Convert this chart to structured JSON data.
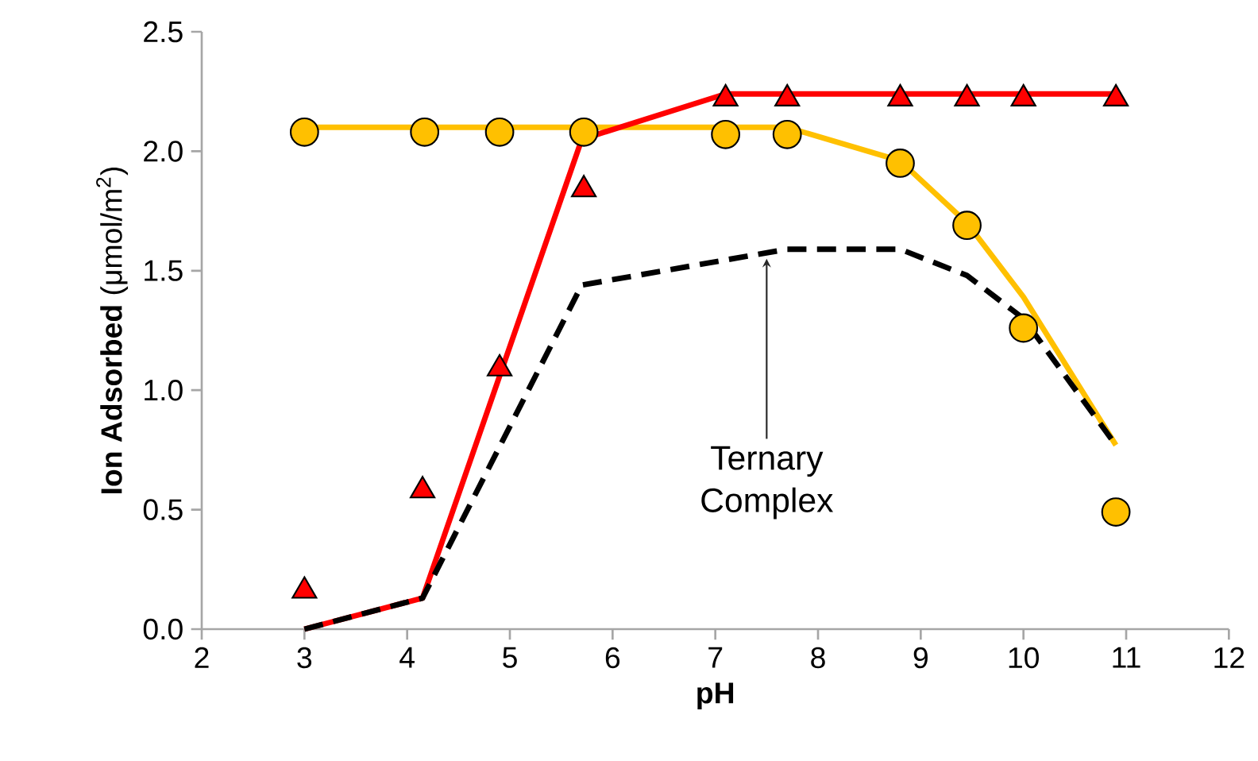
{
  "chart_data": {
    "type": "line",
    "xlabel": "pH",
    "ylabel": "**Ion Adsorbed** (μmol/m$^{2}$)",
    "xlim": [
      2,
      12
    ],
    "xticks": [
      2,
      3,
      4,
      5,
      6,
      7,
      8,
      9,
      10,
      11,
      12
    ],
    "ylim": [
      0,
      2.5
    ],
    "yticks": [
      {
        "value": 0,
        "label": "0.0"
      },
      {
        "value": 0.5,
        "label": "0.5"
      },
      {
        "value": 1,
        "label": "1.0"
      },
      {
        "value": 1.5,
        "label": "1.5"
      },
      {
        "value": 2,
        "label": "2.0"
      },
      {
        "value": 2.5,
        "label": "2.5"
      }
    ],
    "grid": false,
    "series": [
      {
        "color": "#ffc000",
        "line_style": "solid",
        "marker": "none",
        "x": [
          3,
          7.7,
          8.8,
          9.45,
          10.0,
          10.9
        ],
        "values": [
          2.1,
          2.1,
          1.96,
          1.7,
          1.39,
          0.77
        ]
      },
      {
        "color": "#ff0000",
        "line_style": "solid",
        "marker": "none",
        "x": [
          3,
          4.15,
          5.7,
          7.1,
          10.9
        ],
        "values": [
          0,
          0.13,
          2.05,
          2.24,
          2.24
        ]
      },
      {
        "color": "#000000",
        "line_style": "dashed",
        "marker": "none",
        "x": [
          3,
          4.15,
          5.7,
          7.7,
          8.8,
          9.45,
          10.0,
          10.9
        ],
        "values": [
          0,
          0.13,
          1.44,
          1.59,
          1.59,
          1.48,
          1.3,
          0.77
        ]
      },
      {
        "type": "scatter",
        "color": "#ffc000",
        "marker": "circle",
        "x": [
          3,
          4.17,
          4.9,
          5.72,
          7.1,
          7.7,
          8.8,
          9.45,
          10.0,
          10.9
        ],
        "values": [
          2.08,
          2.08,
          2.08,
          2.08,
          2.07,
          2.07,
          1.95,
          1.69,
          1.26,
          0.49
        ]
      },
      {
        "type": "scatter",
        "color": "#ff0000",
        "marker": "triangle",
        "x": [
          3,
          4.15,
          4.9,
          5.72,
          7.1,
          7.7,
          8.8,
          9.45,
          10.0,
          10.9
        ],
        "values": [
          0.16,
          0.58,
          1.09,
          1.84,
          2.22,
          2.22,
          2.22,
          2.22,
          2.22,
          2.22
        ]
      }
    ],
    "annotations": [
      {
        "text": "Ternary Complex",
        "x": 7.5,
        "y": 1.55
      }
    ]
  }
}
